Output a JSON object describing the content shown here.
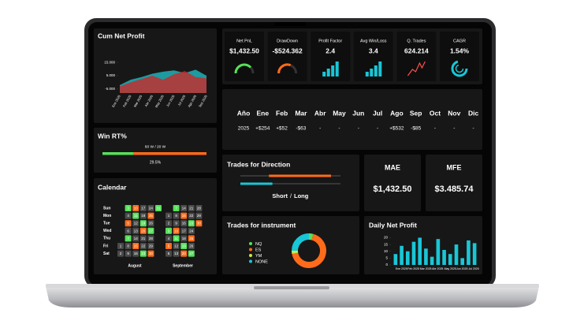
{
  "screen": {
    "cum_net_profit": {
      "type": "area",
      "title": "Cum Net Profit",
      "categories": [
        "Ene 2025",
        "Feb 2025",
        "Mar 2025",
        "Abr 2025",
        "May 2025",
        "Jun 2025",
        "Jul 2025",
        "Ago 2025",
        "Sep 2025"
      ],
      "series": [
        {
          "color": "#1fb3b8",
          "values": [
            -2000,
            2000,
            4000,
            6500,
            8000,
            9000,
            7000,
            9500,
            5000
          ]
        },
        {
          "color": "#c0302f",
          "values": [
            -3000,
            0,
            2500,
            5000,
            2000,
            6000,
            8500,
            4000,
            3000
          ]
        }
      ],
      "ylim": [
        -8000,
        18000
      ],
      "yticks": [
        {
          "value": -5000,
          "label": "-5.000"
        },
        {
          "value": 5000,
          "label": "5.000"
        },
        {
          "value": 15000,
          "label": "15.000"
        }
      ]
    },
    "kpis": [
      {
        "label": "Net PnL",
        "value": "$1,432.50",
        "color": "#57e05a"
      },
      {
        "label": "DrawDown",
        "value": "-$524.362",
        "color": "#ff6b1a"
      },
      {
        "label": "Profit Factor",
        "value": "2.4",
        "color": "#19c6d6"
      },
      {
        "label": "Avg Win/Loss",
        "value": "3.4",
        "color": "#19c6d6"
      },
      {
        "label": "Q. Trades",
        "value": "624.214",
        "color": "#ff4d4d"
      },
      {
        "label": "CAGR",
        "value": "1.54%",
        "color": "#19c6d6"
      }
    ],
    "monthly": {
      "headers": [
        "Año",
        "Ene",
        "Feb",
        "Mar",
        "Abr",
        "May",
        "Jun",
        "Jul",
        "Ago",
        "Sep",
        "Oct",
        "Nov",
        "Dic"
      ],
      "rows": [
        [
          "2025",
          "+$254",
          "+$52",
          "-$63",
          "-",
          "-",
          "-",
          "-",
          "+$532",
          "-$85",
          "-",
          "-",
          "-"
        ]
      ]
    },
    "win_rate": {
      "title": "Win RT%",
      "counts": "60 W / 20 W",
      "value": 29.5,
      "label": "29.5%"
    },
    "calendar": {
      "title": "Calendar",
      "weekdays": [
        "Sun",
        "Mon",
        "Tue",
        "Wed",
        "Thu",
        "Fri",
        "Sat"
      ],
      "months": [
        {
          "name": "August",
          "days": [
            [
              null,
              3,
              10,
              17,
              24,
              31
            ],
            [
              null,
              4,
              11,
              18,
              25
            ],
            [
              null,
              5,
              12,
              19,
              26
            ],
            [
              null,
              6,
              13,
              20,
              27
            ],
            [
              null,
              7,
              14,
              21,
              28
            ],
            [
              1,
              8,
              15,
              22,
              29
            ],
            [
              2,
              9,
              16,
              23,
              30
            ]
          ]
        },
        {
          "name": "September",
          "days": [
            [
              null,
              7,
              14,
              21,
              28
            ],
            [
              1,
              8,
              15,
              22,
              29
            ],
            [
              2,
              9,
              16,
              23,
              30
            ],
            [
              3,
              10,
              17,
              24
            ],
            [
              4,
              11,
              18,
              25
            ],
            [
              5,
              12,
              19,
              26
            ],
            [
              6,
              13,
              20,
              27
            ]
          ]
        }
      ]
    },
    "direction": {
      "title": "Trades for Direction",
      "short_label": "Short",
      "separator": "/",
      "long_label": "Long",
      "short": 62,
      "long": 32,
      "xlim": [
        0,
        100
      ]
    },
    "mae": {
      "label": "MAE",
      "value": "$1,432.50"
    },
    "mfe": {
      "label": "MFE",
      "value": "$3.485.74"
    },
    "instrument": {
      "type": "donut",
      "title": "Trades for instrument",
      "categories": [
        "NQ",
        "ES",
        "YM",
        "NONE"
      ],
      "values": [
        4,
        68,
        3,
        25
      ],
      "colors": [
        "#57e05a",
        "#ff6b1a",
        "#c9e94a",
        "#19c6d6"
      ]
    },
    "daily": {
      "type": "bar",
      "title": "Daily Net Profit",
      "categories": [
        "Ene 2025",
        null,
        "Feb 2025",
        null,
        "Mar 2025",
        null,
        "Abr 2025",
        null,
        "May 2025",
        null,
        "Jun 2025",
        null,
        "Jul 2025",
        null
      ],
      "values": [
        8,
        14,
        10,
        17,
        20,
        12,
        6,
        19,
        11,
        8,
        15,
        5,
        18,
        16
      ],
      "color": "#19c6d6",
      "ylim": [
        0,
        22
      ],
      "yticks": [
        0,
        5,
        10,
        15,
        20
      ]
    }
  }
}
